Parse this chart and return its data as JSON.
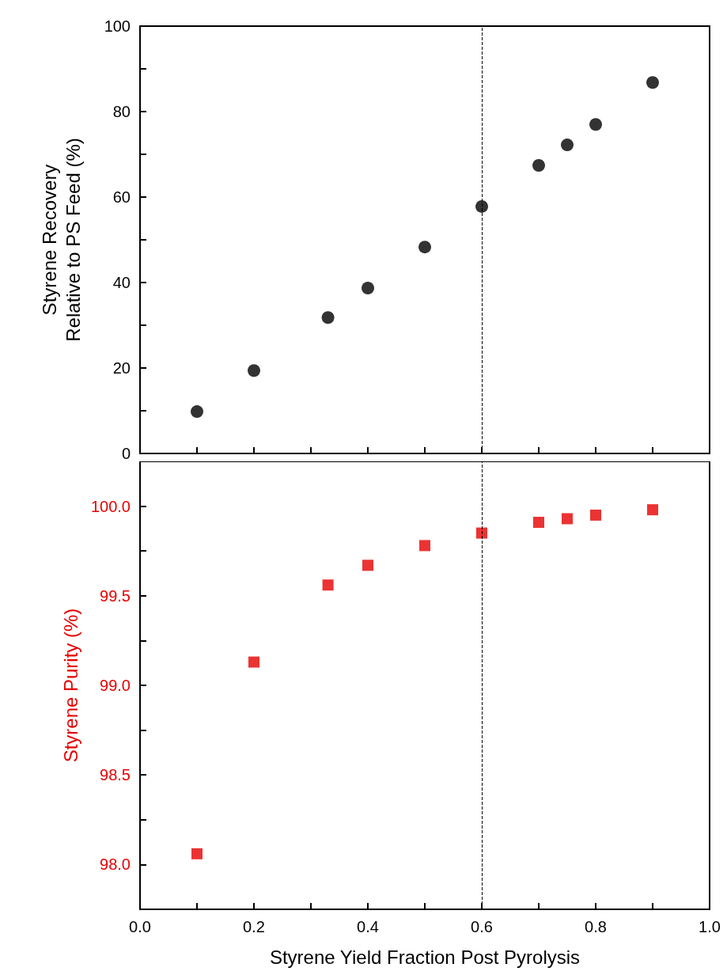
{
  "chart_data": [
    {
      "type": "scatter",
      "ylabel": "Styrene Recovery\nRelative to PS Feed (%)",
      "x": [
        0.1,
        0.2,
        0.33,
        0.4,
        0.5,
        0.6,
        0.7,
        0.75,
        0.8,
        0.9
      ],
      "values": [
        9.8,
        19.4,
        31.8,
        38.7,
        48.3,
        57.8,
        67.4,
        72.2,
        77.0,
        86.8
      ],
      "color": "#000000",
      "marker": "circle",
      "grid": false,
      "tick_labels": "y",
      "xlim": [
        0,
        1
      ],
      "xticks": [
        {
          "value": 0,
          "label": null
        },
        {
          "value": 0.1,
          "label": null
        },
        {
          "value": 0.2,
          "label": null
        },
        {
          "value": 0.3,
          "label": null
        },
        {
          "value": 0.4,
          "label": null
        },
        {
          "value": 0.5,
          "label": null
        },
        {
          "value": 0.6,
          "label": null
        },
        {
          "value": 0.7,
          "label": null
        },
        {
          "value": 0.8,
          "label": null
        },
        {
          "value": 0.9,
          "label": null
        },
        {
          "value": 1,
          "label": null
        }
      ],
      "ylim": [
        0,
        100
      ],
      "yticks": [
        0,
        {
          "value": 10,
          "label": null
        },
        20,
        {
          "value": 30,
          "label": null
        },
        40,
        {
          "value": 50,
          "label": null
        },
        60,
        {
          "value": 70,
          "label": null
        },
        80,
        {
          "value": 90,
          "label": null
        },
        100
      ],
      "ref_lines": [
        {
          "axis": "x",
          "value": 0.6,
          "color": "#000000",
          "line_style": "dashed"
        }
      ]
    },
    {
      "type": "scatter",
      "xlabel": "Styrene Yield Fraction Post Pyrolysis",
      "ylabel": "Styrene Purity (%)",
      "x": [
        0.1,
        0.2,
        0.33,
        0.4,
        0.5,
        0.6,
        0.7,
        0.75,
        0.8,
        0.9
      ],
      "values": [
        98.06,
        99.13,
        99.56,
        99.67,
        99.78,
        99.85,
        99.91,
        99.93,
        99.95,
        99.98
      ],
      "color": "#e60000",
      "marker": "square",
      "grid": false,
      "xlim": [
        0,
        1
      ],
      "xticks": [
        {
          "value": 0,
          "label": "0.0"
        },
        {
          "value": 0.1,
          "label": null
        },
        {
          "value": 0.2,
          "label": "0.2"
        },
        {
          "value": 0.3,
          "label": null
        },
        {
          "value": 0.4,
          "label": "0.4"
        },
        {
          "value": 0.5,
          "label": null
        },
        {
          "value": 0.6,
          "label": "0.6"
        },
        {
          "value": 0.7,
          "label": null
        },
        {
          "value": 0.8,
          "label": "0.8"
        },
        {
          "value": 0.9,
          "label": null
        },
        {
          "value": 1,
          "label": "1.0"
        }
      ],
      "ylim": [
        97.75,
        100.25
      ],
      "yticks": [
        {
          "value": 98,
          "label": "98.0"
        },
        {
          "value": 98.25,
          "label": null
        },
        {
          "value": 98.5,
          "label": "98.5"
        },
        {
          "value": 98.75,
          "label": null
        },
        {
          "value": 99,
          "label": "99.0"
        },
        {
          "value": 99.25,
          "label": null
        },
        {
          "value": 99.5,
          "label": "99.5"
        },
        {
          "value": 99.75,
          "label": null
        },
        {
          "value": 100,
          "label": "100.0"
        }
      ],
      "ref_lines": [
        {
          "axis": "x",
          "value": 0.6,
          "color": "#000000",
          "line_style": "dashed"
        }
      ]
    }
  ]
}
